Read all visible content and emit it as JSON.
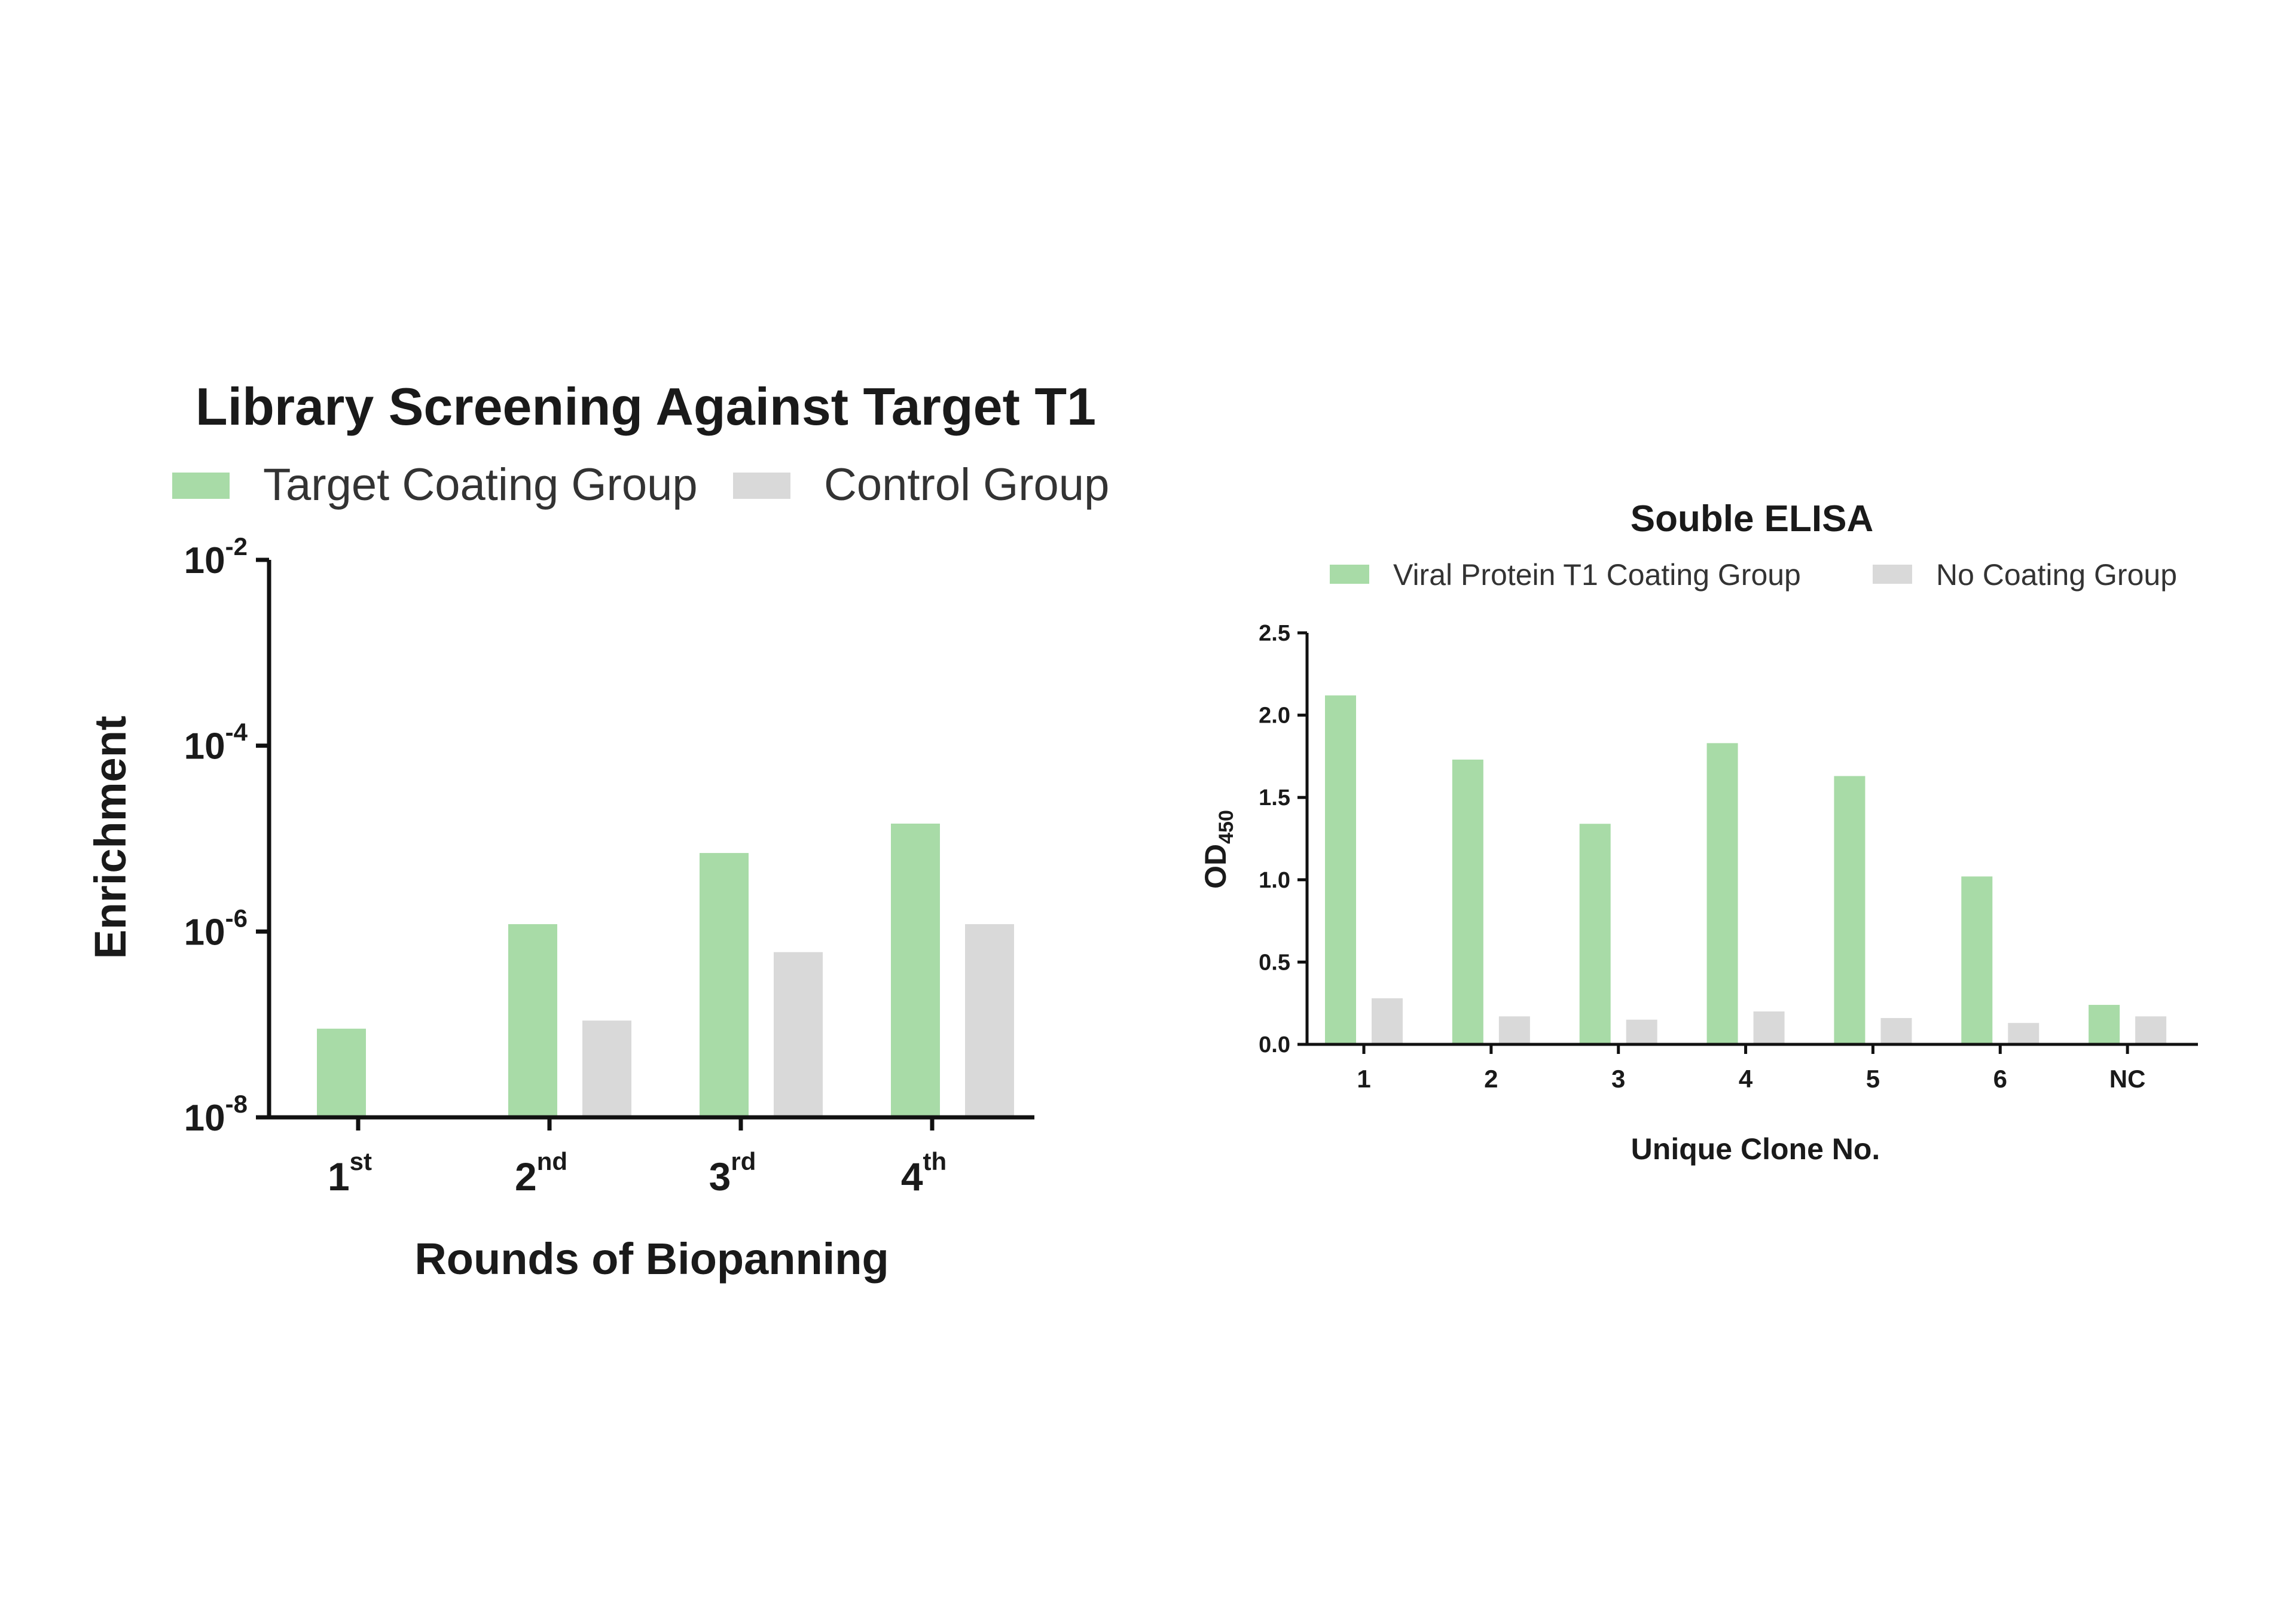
{
  "colors": {
    "target": "#a8dba7",
    "control": "#d9d9d9",
    "axis": "#111111"
  },
  "chart_data": [
    {
      "type": "bar",
      "title": "Library Screening Against Target T1",
      "xlabel": "Rounds of Biopanning",
      "ylabel": "Enrichment",
      "yscale": "log",
      "ylim": [
        1e-08,
        0.01
      ],
      "yticks": [
        {
          "base": "10",
          "exp": "-2",
          "value": 0.01
        },
        {
          "base": "10",
          "exp": "-4",
          "value": 0.0001
        },
        {
          "base": "10",
          "exp": "-6",
          "value": 1e-06
        },
        {
          "base": "10",
          "exp": "-8",
          "value": 1e-08
        }
      ],
      "categories": [
        {
          "num": "1",
          "sup": "st"
        },
        {
          "num": "2",
          "sup": "nd"
        },
        {
          "num": "3",
          "sup": "rd"
        },
        {
          "num": "4",
          "sup": "th"
        }
      ],
      "series": [
        {
          "name": "Target Coating Group",
          "color": "#a8dba7",
          "values": [
            9e-08,
            1.2e-06,
            7e-06,
            1.45e-05
          ]
        },
        {
          "name": "Control Group",
          "color": "#d9d9d9",
          "values": [
            null,
            1.1e-07,
            6e-07,
            1.2e-06
          ]
        }
      ],
      "legend": "top",
      "grid": false
    },
    {
      "type": "bar",
      "title": "Souble ELISA",
      "xlabel": "Unique Clone No.",
      "ylabel": "OD",
      "ylabel_sub": "450",
      "ylim": [
        0,
        2.5
      ],
      "yticks": [
        "0.0",
        "0.5",
        "1.0",
        "1.5",
        "2.0",
        "2.5"
      ],
      "categories": [
        "1",
        "2",
        "3",
        "4",
        "5",
        "6",
        "NC"
      ],
      "series": [
        {
          "name": "Viral Protein T1 Coating Group",
          "color": "#a8dba7",
          "values": [
            2.12,
            1.73,
            1.34,
            1.83,
            1.63,
            1.02,
            0.24
          ]
        },
        {
          "name": "No Coating Group",
          "color": "#d9d9d9",
          "values": [
            0.28,
            0.17,
            0.15,
            0.2,
            0.16,
            0.13,
            0.17
          ]
        }
      ],
      "legend": "top",
      "grid": false
    }
  ]
}
